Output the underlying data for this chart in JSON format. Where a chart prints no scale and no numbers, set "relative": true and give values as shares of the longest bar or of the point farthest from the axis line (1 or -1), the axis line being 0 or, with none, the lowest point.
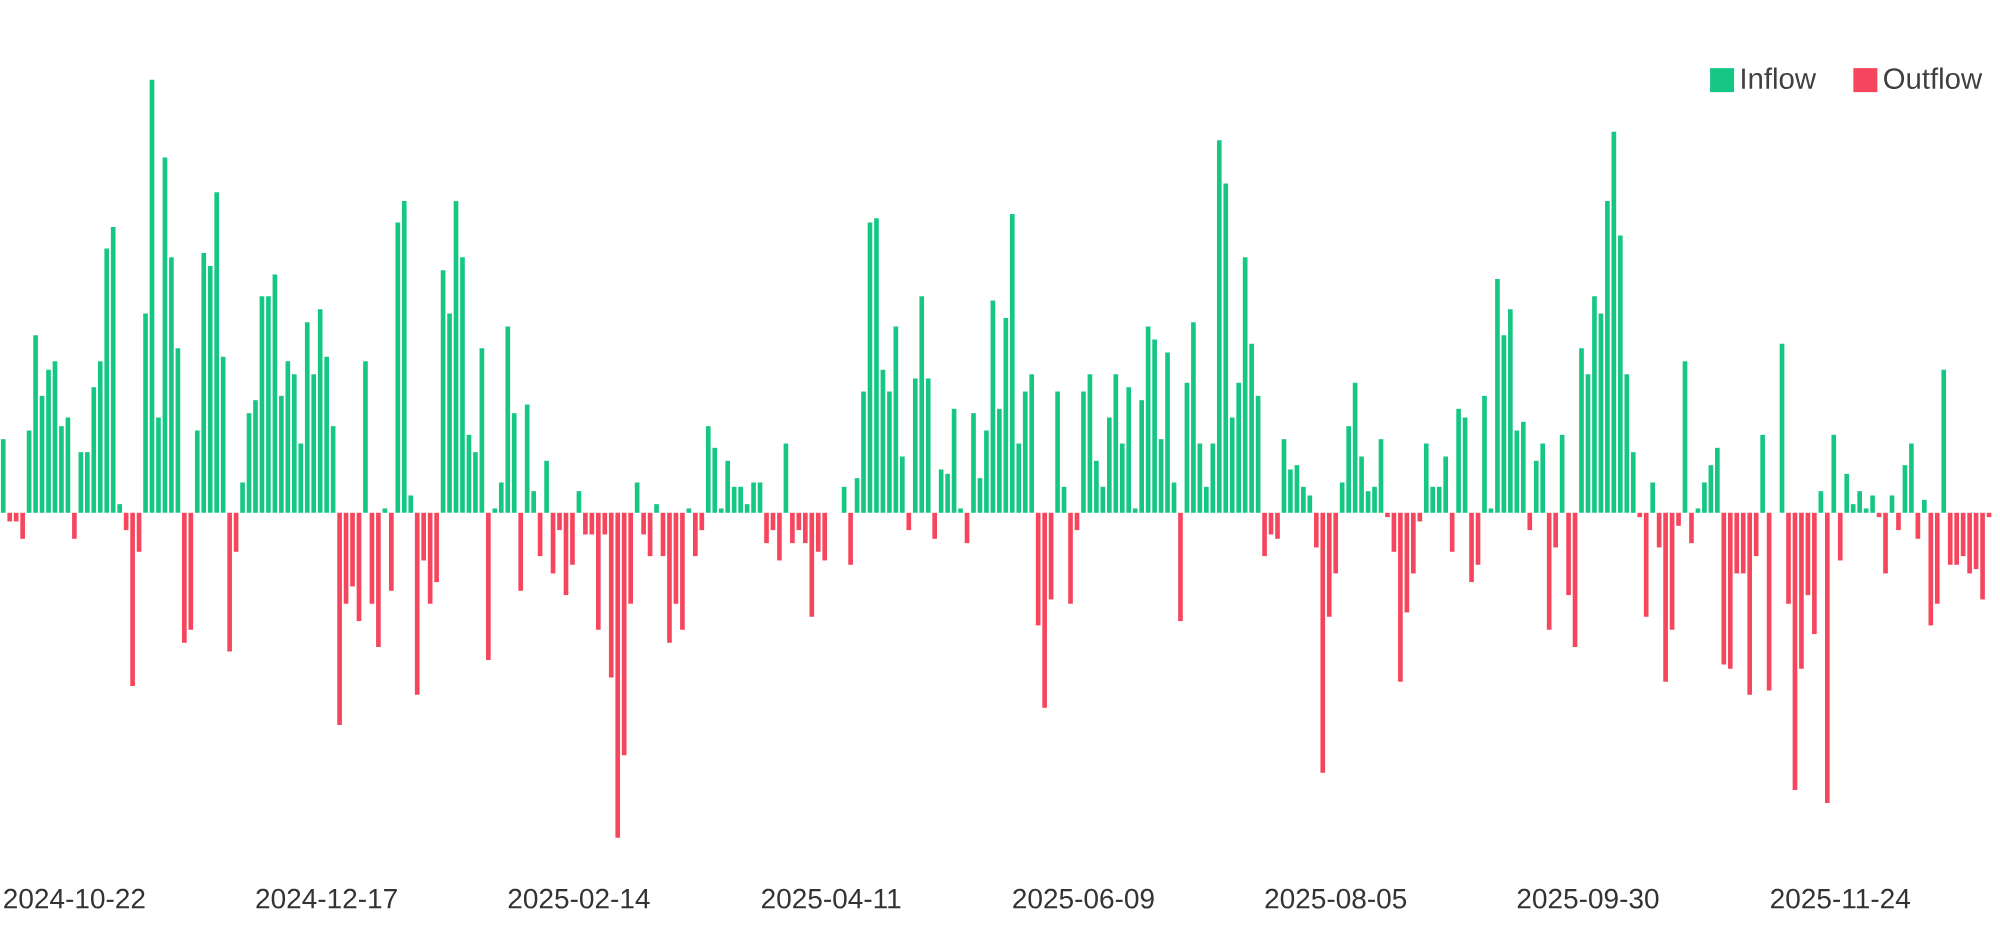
{
  "chart_data": {
    "type": "bar",
    "relative": true,
    "legend": "top right",
    "categories": [
      null,
      null,
      null,
      null,
      null,
      null,
      null,
      null,
      null,
      null,
      null,
      "2024-10-22",
      null,
      null,
      null,
      null,
      null,
      null,
      null,
      null,
      null,
      null,
      null,
      null,
      null,
      null,
      null,
      null,
      null,
      null,
      null,
      null,
      null,
      null,
      null,
      null,
      null,
      null,
      null,
      null,
      null,
      null,
      null,
      null,
      null,
      null,
      null,
      null,
      null,
      null,
      "2024-12-17",
      null,
      null,
      null,
      null,
      null,
      null,
      null,
      null,
      null,
      null,
      null,
      null,
      null,
      null,
      null,
      null,
      null,
      null,
      null,
      null,
      null,
      null,
      null,
      null,
      null,
      null,
      null,
      null,
      null,
      null,
      null,
      null,
      null,
      null,
      null,
      null,
      null,
      null,
      "2025-02-14",
      null,
      null,
      null,
      null,
      null,
      null,
      null,
      null,
      null,
      null,
      null,
      null,
      null,
      null,
      null,
      null,
      null,
      null,
      null,
      null,
      null,
      null,
      null,
      null,
      null,
      null,
      null,
      null,
      null,
      null,
      null,
      null,
      null,
      null,
      null,
      null,
      null,
      null,
      "2025-04-11",
      null,
      null,
      null,
      null,
      null,
      null,
      null,
      null,
      null,
      null,
      null,
      null,
      null,
      null,
      null,
      null,
      null,
      null,
      null,
      null,
      null,
      null,
      null,
      null,
      null,
      null,
      null,
      null,
      null,
      null,
      null,
      null,
      null,
      null,
      null,
      null,
      null,
      null,
      "2025-06-09",
      null,
      null,
      null,
      null,
      null,
      null,
      null,
      null,
      null,
      null,
      null,
      null,
      null,
      null,
      null,
      null,
      null,
      null,
      null,
      null,
      null,
      null,
      null,
      null,
      null,
      null,
      null,
      null,
      null,
      null,
      null,
      null,
      null,
      null,
      null,
      null,
      null,
      null,
      "2025-08-05",
      null,
      null,
      null,
      null,
      null,
      null,
      null,
      null,
      null,
      null,
      null,
      null,
      null,
      null,
      null,
      null,
      null,
      null,
      null,
      null,
      null,
      null,
      null,
      null,
      null,
      null,
      null,
      null,
      null,
      null,
      null,
      null,
      null,
      null,
      null,
      null,
      null,
      null,
      "2025-09-30",
      null,
      null,
      null,
      null,
      null,
      null,
      null,
      null,
      null,
      null,
      null,
      null,
      null,
      null,
      null,
      null,
      null,
      null,
      null,
      null,
      null,
      null,
      null,
      null,
      null,
      null,
      null,
      null,
      null,
      null,
      null,
      null,
      null,
      null,
      null,
      null,
      null,
      null,
      "2025-11-24",
      null,
      null,
      null,
      null,
      null,
      null,
      null,
      null,
      null,
      null,
      null,
      null,
      null,
      null,
      null,
      null,
      null,
      null,
      null,
      null,
      null,
      null,
      null
    ],
    "series": [
      {
        "name": "Inflow",
        "color": "#16c784",
        "values": [
          0.17,
          null,
          null,
          null,
          0.19,
          0.41,
          0.27,
          0.33,
          0.35,
          0.2,
          0.22,
          null,
          0.14,
          0.14,
          0.29,
          0.35,
          0.61,
          0.66,
          0.02,
          null,
          null,
          null,
          0.46,
          1.0,
          0.22,
          0.82,
          0.59,
          0.38,
          null,
          null,
          0.19,
          0.6,
          0.57,
          0.74,
          0.36,
          null,
          null,
          0.07,
          0.23,
          0.26,
          0.5,
          0.5,
          0.55,
          0.27,
          0.35,
          0.32,
          0.16,
          0.44,
          0.32,
          0.47,
          0.36,
          0.2,
          null,
          null,
          null,
          null,
          0.35,
          null,
          null,
          0.01,
          null,
          0.67,
          0.72,
          0.04,
          null,
          null,
          null,
          null,
          0.56,
          0.46,
          0.72,
          0.59,
          0.18,
          0.14,
          0.38,
          null,
          0.01,
          0.07,
          0.43,
          0.23,
          null,
          0.25,
          0.05,
          null,
          0.12,
          null,
          null,
          null,
          null,
          0.05,
          null,
          null,
          null,
          null,
          null,
          null,
          null,
          null,
          0.07,
          null,
          null,
          0.02,
          null,
          null,
          null,
          null,
          0.01,
          null,
          null,
          0.2,
          0.15,
          0.01,
          0.12,
          0.06,
          0.06,
          0.02,
          0.07,
          0.07,
          null,
          null,
          null,
          0.16,
          null,
          null,
          null,
          null,
          null,
          null,
          null,
          null,
          0.06,
          null,
          0.08,
          0.28,
          0.67,
          0.68,
          0.33,
          0.28,
          0.43,
          0.13,
          null,
          0.31,
          0.5,
          0.31,
          null,
          0.1,
          0.09,
          0.24,
          0.01,
          null,
          0.23,
          0.08,
          0.19,
          0.49,
          0.24,
          0.45,
          0.69,
          0.16,
          0.28,
          0.32,
          null,
          null,
          null,
          0.28,
          0.06,
          null,
          null,
          0.28,
          0.32,
          0.12,
          0.06,
          0.22,
          0.32,
          0.16,
          0.29,
          0.01,
          0.26,
          0.43,
          0.4,
          0.17,
          0.37,
          0.07,
          null,
          0.3,
          0.44,
          0.16,
          0.06,
          0.16,
          0.86,
          0.76,
          0.22,
          0.3,
          0.59,
          0.39,
          0.27,
          null,
          null,
          null,
          0.17,
          0.1,
          0.11,
          0.06,
          0.04,
          null,
          null,
          null,
          null,
          0.07,
          0.2,
          0.3,
          0.13,
          0.05,
          0.06,
          0.17,
          null,
          null,
          null,
          null,
          null,
          null,
          0.16,
          0.06,
          0.06,
          0.13,
          null,
          0.24,
          0.22,
          null,
          null,
          0.27,
          0.01,
          0.54,
          0.41,
          0.47,
          0.19,
          0.21,
          null,
          0.12,
          0.16,
          null,
          null,
          0.18,
          null,
          null,
          0.38,
          0.32,
          0.5,
          0.46,
          0.72,
          0.88,
          0.64,
          0.32,
          0.14,
          null,
          null,
          0.07,
          null,
          null,
          null,
          null,
          0.35,
          null,
          0.01,
          0.07,
          0.11,
          0.15,
          null,
          null,
          null,
          null,
          null,
          null,
          0.18,
          null,
          null,
          0.39,
          null,
          null,
          null,
          null,
          null,
          0.05,
          null,
          0.18,
          null,
          0.09,
          0.02,
          0.05,
          0.01,
          0.04,
          null,
          null,
          0.04,
          null,
          0.11,
          0.16,
          null,
          0.03,
          null,
          null,
          0.33,
          null,
          null,
          null,
          null,
          null,
          null,
          null
        ]
      },
      {
        "name": "Outflow",
        "color": "#f6465d",
        "values": [
          null,
          -0.02,
          -0.02,
          -0.06,
          null,
          null,
          null,
          null,
          null,
          null,
          null,
          -0.06,
          null,
          null,
          null,
          null,
          null,
          null,
          null,
          -0.04,
          -0.4,
          -0.09,
          null,
          null,
          null,
          null,
          null,
          null,
          -0.3,
          -0.27,
          null,
          null,
          null,
          null,
          null,
          -0.32,
          -0.09,
          null,
          null,
          null,
          null,
          null,
          null,
          null,
          null,
          null,
          null,
          null,
          null,
          null,
          null,
          null,
          -0.49,
          -0.21,
          -0.17,
          -0.25,
          null,
          -0.21,
          -0.31,
          null,
          -0.18,
          null,
          null,
          null,
          -0.42,
          -0.11,
          -0.21,
          -0.16,
          null,
          null,
          null,
          null,
          null,
          null,
          null,
          -0.34,
          null,
          null,
          null,
          null,
          -0.18,
          null,
          null,
          -0.1,
          null,
          -0.14,
          -0.04,
          -0.19,
          -0.12,
          null,
          -0.05,
          -0.05,
          -0.27,
          -0.05,
          -0.38,
          -0.75,
          -0.56,
          -0.21,
          null,
          -0.05,
          -0.1,
          null,
          -0.1,
          -0.3,
          -0.21,
          -0.27,
          null,
          -0.1,
          -0.04,
          null,
          null,
          null,
          null,
          null,
          null,
          null,
          null,
          null,
          -0.07,
          -0.04,
          -0.11,
          null,
          -0.07,
          -0.04,
          -0.07,
          -0.24,
          -0.09,
          -0.11,
          null,
          null,
          null,
          -0.12,
          null,
          null,
          null,
          null,
          null,
          null,
          null,
          null,
          -0.04,
          null,
          null,
          null,
          -0.06,
          null,
          null,
          null,
          null,
          -0.07,
          null,
          null,
          null,
          null,
          null,
          null,
          null,
          null,
          null,
          null,
          -0.26,
          -0.45,
          -0.2,
          null,
          null,
          -0.21,
          -0.04,
          null,
          null,
          null,
          null,
          null,
          null,
          null,
          null,
          null,
          null,
          null,
          null,
          null,
          null,
          null,
          -0.25,
          null,
          null,
          null,
          null,
          null,
          null,
          null,
          null,
          null,
          null,
          null,
          null,
          -0.1,
          -0.05,
          -0.06,
          null,
          null,
          null,
          null,
          null,
          -0.08,
          -0.6,
          -0.24,
          -0.14,
          null,
          null,
          null,
          null,
          null,
          null,
          null,
          -0.01,
          -0.09,
          -0.39,
          -0.23,
          -0.14,
          -0.02,
          null,
          null,
          null,
          null,
          -0.09,
          null,
          null,
          -0.16,
          -0.12,
          null,
          null,
          null,
          null,
          null,
          null,
          null,
          -0.04,
          null,
          null,
          -0.27,
          -0.08,
          null,
          -0.19,
          -0.31,
          null,
          null,
          null,
          null,
          null,
          null,
          null,
          null,
          null,
          -0.01,
          -0.24,
          null,
          -0.08,
          -0.39,
          -0.27,
          -0.03,
          null,
          -0.07,
          null,
          null,
          null,
          null,
          -0.35,
          -0.36,
          -0.14,
          -0.14,
          -0.42,
          -0.1,
          null,
          -0.41,
          null,
          null,
          -0.21,
          -0.64,
          -0.36,
          -0.19,
          -0.28,
          null,
          -0.67,
          null,
          -0.11,
          null,
          null,
          null,
          null,
          null,
          -0.01,
          -0.14,
          null,
          -0.04,
          null,
          null,
          -0.06,
          null,
          -0.26,
          -0.21,
          null,
          -0.12,
          -0.12,
          -0.1,
          -0.14,
          -0.13,
          -0.2,
          -0.01
        ]
      }
    ]
  }
}
